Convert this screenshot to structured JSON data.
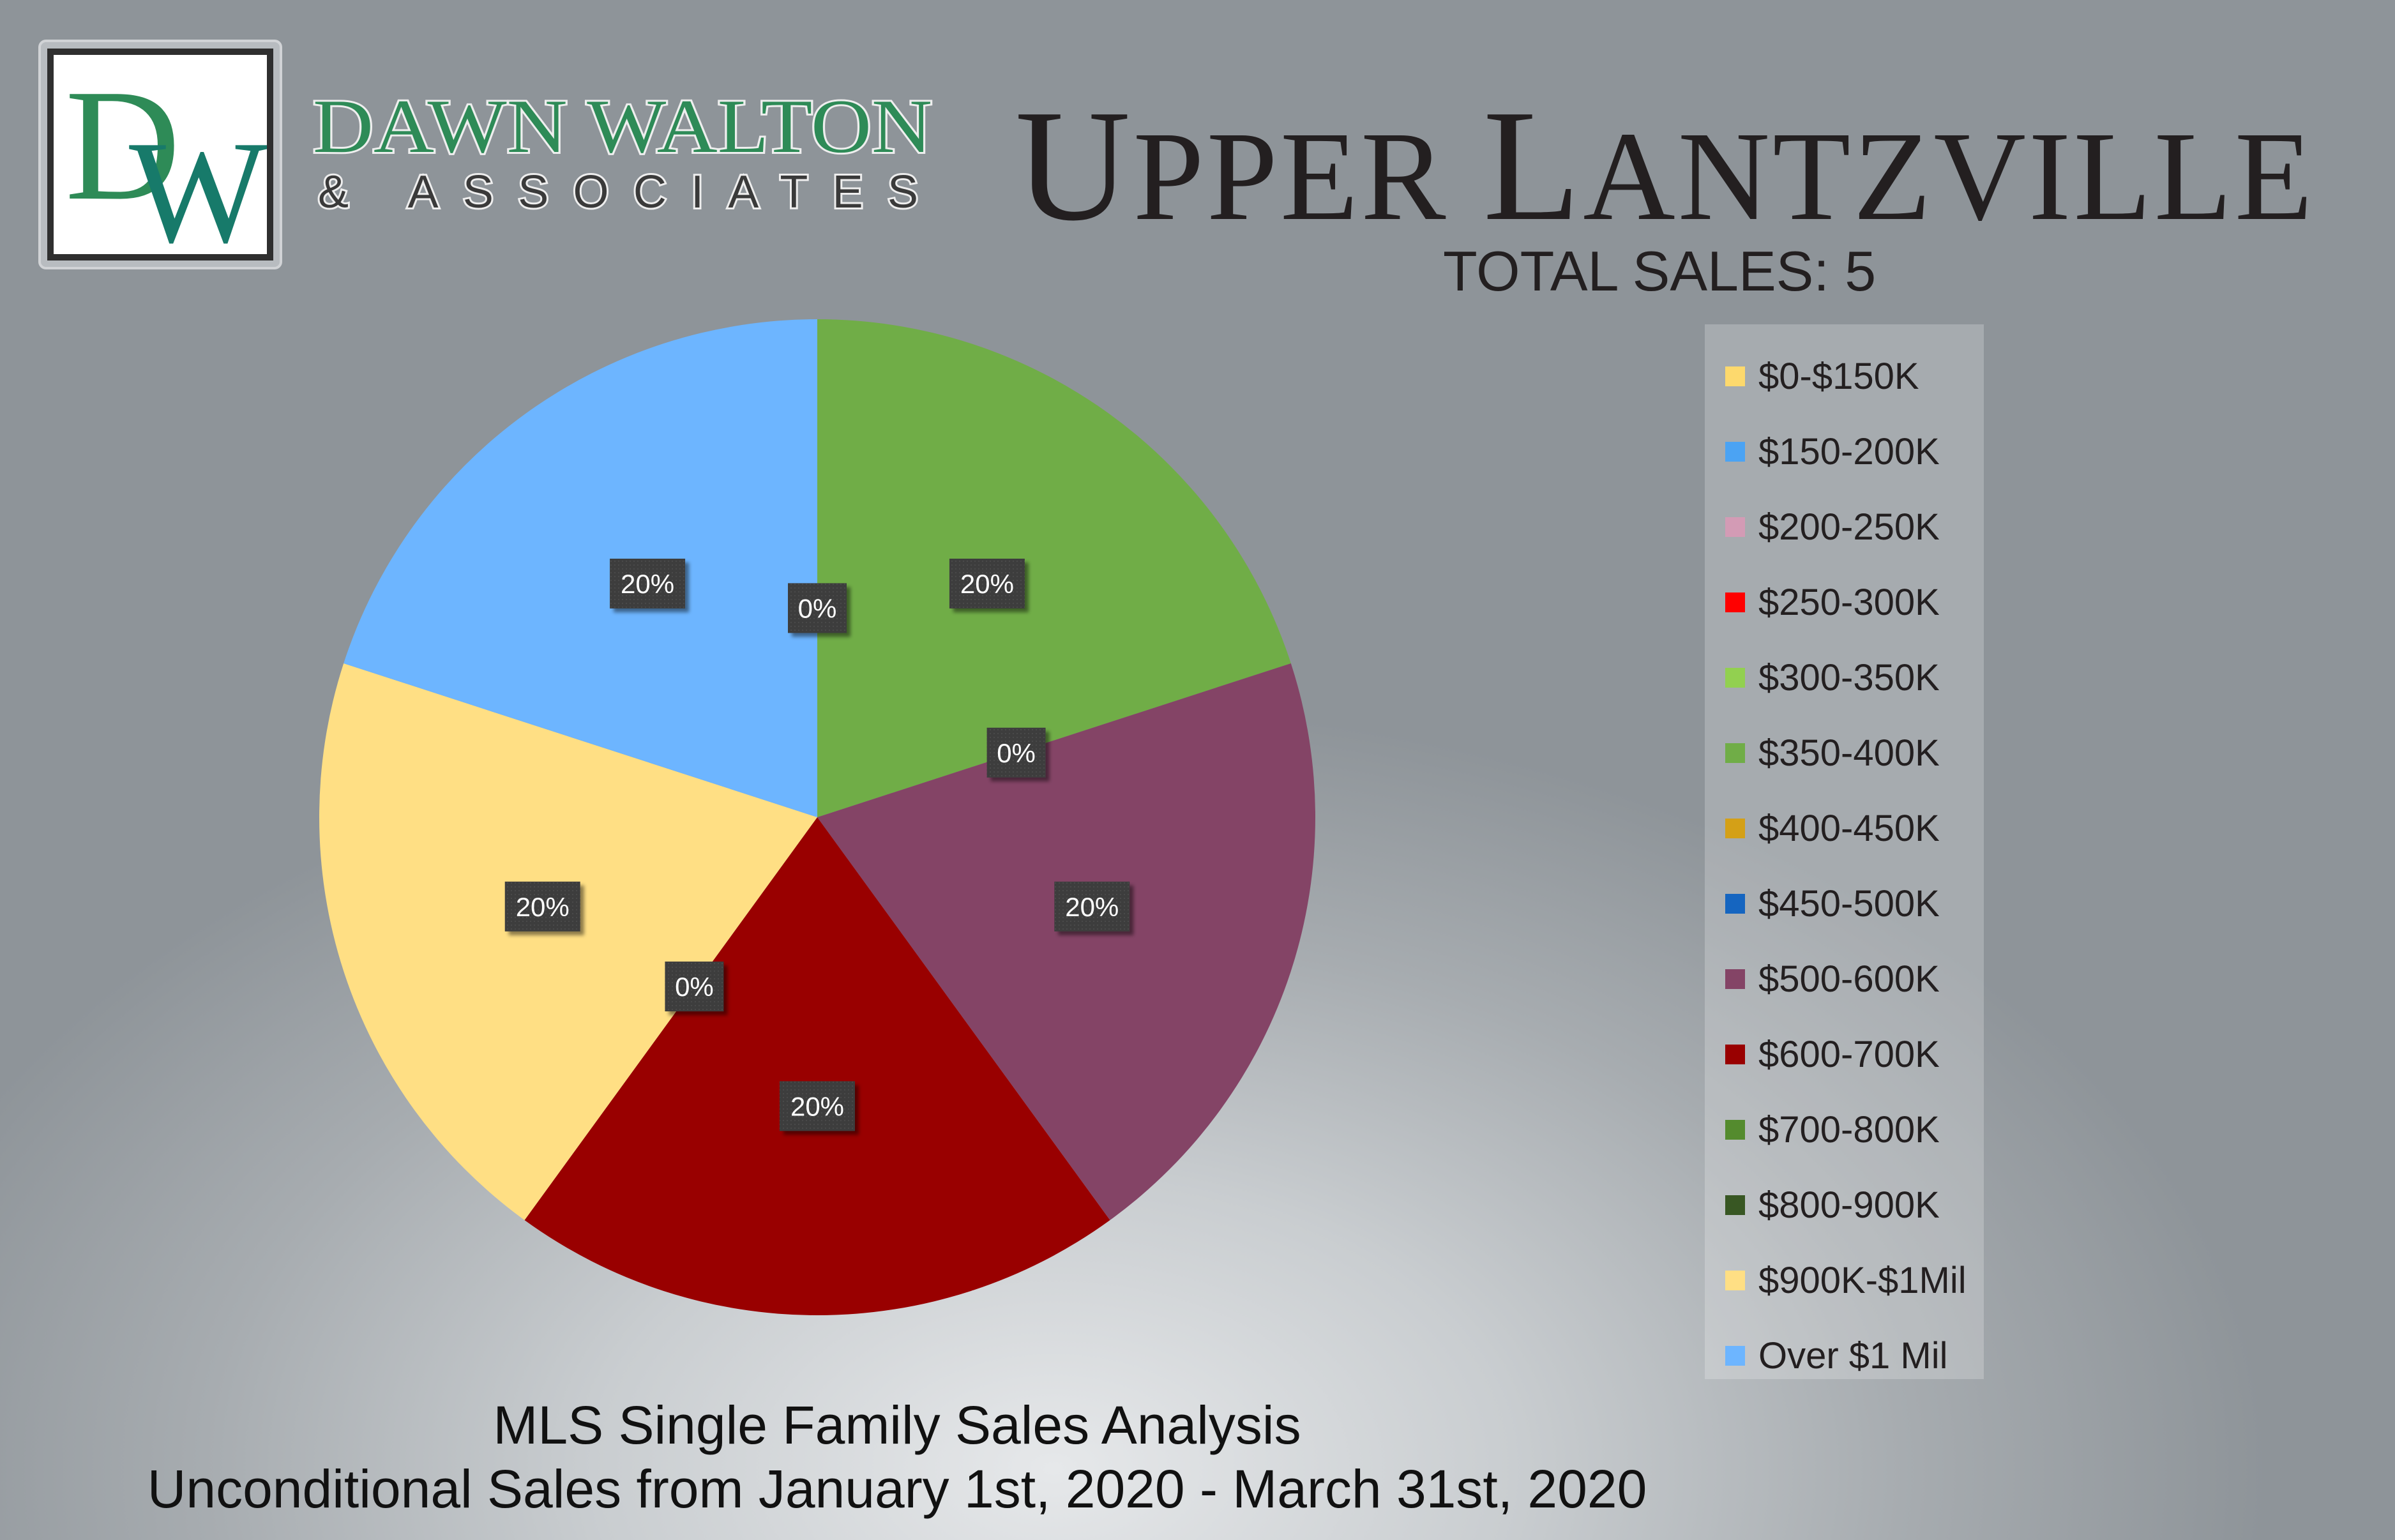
{
  "brand": {
    "monogram": "DW",
    "name_line1": "DAWN WALTON",
    "name_line2": "& ASSOCIATES",
    "colors": {
      "green": "#2e8b57",
      "teal": "#177a6a",
      "dark": "#2f2f2f"
    }
  },
  "header": {
    "title": "Upper Lantzville",
    "total_sales": "TOTAL SALES: 5"
  },
  "footer": {
    "line1": "MLS Single Family Sales Analysis",
    "line2": "Unconditional Sales from January 1st, 2020 - March 31st, 2020"
  },
  "chart_data": {
    "type": "pie",
    "categories": [
      "$0-$150K",
      "$150-200K",
      "$200-250K",
      "$250-300K",
      "$300-350K",
      "$350-400K",
      "$400-450K",
      "$450-500K",
      "$500-600K",
      "$600-700K",
      "$700-800K",
      "$800-900K",
      "$900K-$1Mil",
      "Over $1 Mil"
    ],
    "values": [
      0,
      0,
      0,
      0,
      0,
      1,
      0,
      0,
      1,
      1,
      0,
      0,
      1,
      1
    ],
    "colors": [
      "#fdd96d",
      "#4ba3f3",
      "#d39bb5",
      "#ff0000",
      "#92d050",
      "#70ad47",
      "#d4a017",
      "#1565c0",
      "#844466",
      "#990000",
      "#548b2e",
      "#385723",
      "#ffdf84",
      "#6db5ff"
    ],
    "visible_labels": [
      {
        "category": "$350-400K",
        "text": "20%"
      },
      {
        "category": "$450-500K",
        "text": "0%"
      },
      {
        "category": "$500-600K",
        "text": "20%"
      },
      {
        "category": "$600-700K",
        "text": "20%"
      },
      {
        "category": "$800-900K",
        "text": "0%"
      },
      {
        "category": "$900K-$1Mil",
        "text": "20%"
      },
      {
        "category": "Over $1 Mil",
        "text": "20%"
      },
      {
        "category": "$0-$150K",
        "text": "0%"
      }
    ],
    "legend_position": "right"
  }
}
